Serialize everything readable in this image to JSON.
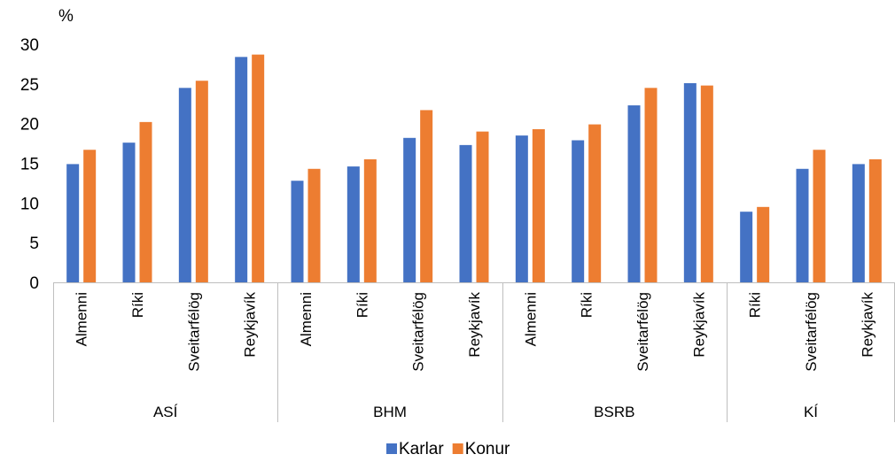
{
  "chart_data": {
    "type": "bar",
    "ylabel": "%",
    "ylim": [
      0,
      30
    ],
    "yticks": [
      0,
      5,
      10,
      15,
      20,
      25,
      30
    ],
    "grid": false,
    "legend_position": "bottom",
    "groups": [
      {
        "name": "ASÍ",
        "categories": [
          "Almenni",
          "Ríki",
          "Sveitarfélög",
          "Reykjavík"
        ]
      },
      {
        "name": "BHM",
        "categories": [
          "Almenni",
          "Ríki",
          "Sveitarfélög",
          "Reykjavík"
        ]
      },
      {
        "name": "BSRB",
        "categories": [
          "Almenni",
          "Ríki",
          "Sveitarfélög",
          "Reykjavík"
        ]
      },
      {
        "name": "KÍ",
        "categories": [
          "Ríki",
          "Sveitarfélög",
          "Reykjavík"
        ]
      }
    ],
    "series": [
      {
        "name": "Karlar",
        "color": "#4472C4",
        "values": [
          14.9,
          17.6,
          24.5,
          28.4,
          12.8,
          14.6,
          18.2,
          17.3,
          18.5,
          17.9,
          22.3,
          25.1,
          8.9,
          14.3,
          14.9
        ]
      },
      {
        "name": "Konur",
        "color": "#ED7D31",
        "values": [
          16.7,
          20.2,
          25.4,
          28.7,
          14.3,
          15.5,
          21.7,
          19.0,
          19.3,
          19.9,
          24.5,
          24.8,
          9.5,
          16.7,
          15.5
        ]
      }
    ]
  }
}
